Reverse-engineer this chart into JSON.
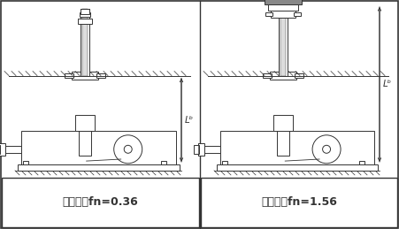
{
  "bg_color": "#ffffff",
  "line_color": "#333333",
  "label_left": "轴端自由fn=0.36",
  "label_right": "轴端支撑fn=1.56",
  "lb_label": "Lᵇ",
  "label_fontsize": 9,
  "lb_fontsize": 7.5
}
